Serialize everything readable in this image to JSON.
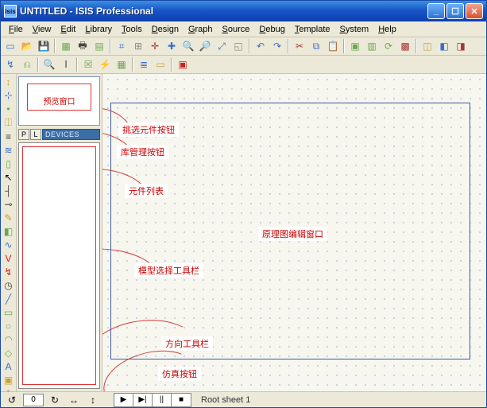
{
  "window": {
    "title_doc": "UNTITLED",
    "title_app": " - ISIS Professional",
    "app_icon_text": "isis"
  },
  "win_buttons": {
    "min": "_",
    "max": "☐",
    "close": "✕"
  },
  "menus": [
    {
      "label": "File",
      "u": "F"
    },
    {
      "label": "View",
      "u": "V"
    },
    {
      "label": "Edit",
      "u": "E"
    },
    {
      "label": "Library",
      "u": "L"
    },
    {
      "label": "Tools",
      "u": "T"
    },
    {
      "label": "Design",
      "u": "D"
    },
    {
      "label": "Graph",
      "u": "G"
    },
    {
      "label": "Source",
      "u": "S"
    },
    {
      "label": "Debug",
      "u": "D"
    },
    {
      "label": "Template",
      "u": "T"
    },
    {
      "label": "System",
      "u": "S"
    },
    {
      "label": "Help",
      "u": "H"
    }
  ],
  "toolbar1": [
    {
      "name": "new-file-icon",
      "glyph": "▭",
      "color": "#3a78c4"
    },
    {
      "name": "open-file-icon",
      "glyph": "📂",
      "color": "#caa23a"
    },
    {
      "name": "save-icon",
      "glyph": "💾",
      "color": "#3a6ecc"
    },
    {
      "name": "sep"
    },
    {
      "name": "grid-area-icon",
      "glyph": "▦",
      "color": "#6aa84f"
    },
    {
      "name": "print-icon",
      "glyph": "🖶",
      "color": "#444"
    },
    {
      "name": "sheet-icon",
      "glyph": "▤",
      "color": "#6aa84f"
    },
    {
      "name": "sep"
    },
    {
      "name": "zoom-area-icon",
      "glyph": "⌗",
      "color": "#3a6ecc"
    },
    {
      "name": "grid-toggle-icon",
      "glyph": "⊞",
      "color": "#888"
    },
    {
      "name": "origin-icon",
      "glyph": "✛",
      "color": "#aa3333"
    },
    {
      "name": "center-icon",
      "glyph": "✚",
      "color": "#3a6ecc"
    },
    {
      "name": "zoom-in-icon",
      "glyph": "🔍",
      "color": "#444"
    },
    {
      "name": "zoom-out-icon",
      "glyph": "🔎",
      "color": "#444"
    },
    {
      "name": "zoom-fit-icon",
      "glyph": "⤢",
      "color": "#3a6ecc"
    },
    {
      "name": "zoom-region-icon",
      "glyph": "◱",
      "color": "#888"
    },
    {
      "name": "sep"
    },
    {
      "name": "undo-icon",
      "glyph": "↶",
      "color": "#3a6ecc"
    },
    {
      "name": "redo-icon",
      "glyph": "↷",
      "color": "#3a6ecc"
    },
    {
      "name": "sep"
    },
    {
      "name": "cut-icon",
      "glyph": "✂",
      "color": "#aa3333"
    },
    {
      "name": "copy-icon",
      "glyph": "⧉",
      "color": "#3a6ecc"
    },
    {
      "name": "paste-icon",
      "glyph": "📋",
      "color": "#caa23a"
    },
    {
      "name": "sep"
    },
    {
      "name": "block-copy-icon",
      "glyph": "▣",
      "color": "#6aa84f"
    },
    {
      "name": "block-move-icon",
      "glyph": "▥",
      "color": "#6aa84f"
    },
    {
      "name": "block-rotate-icon",
      "glyph": "⟳",
      "color": "#6aa84f"
    },
    {
      "name": "block-delete-icon",
      "glyph": "▩",
      "color": "#aa3333"
    },
    {
      "name": "sep"
    },
    {
      "name": "pick-package-icon",
      "glyph": "◫",
      "color": "#caa23a"
    },
    {
      "name": "make-device-icon",
      "glyph": "◧",
      "color": "#3a6ecc"
    },
    {
      "name": "decompose-icon",
      "glyph": "◨",
      "color": "#aa3333"
    }
  ],
  "toolbar2": [
    {
      "name": "wire-tool-icon",
      "glyph": "↯",
      "color": "#3a6ecc"
    },
    {
      "name": "wire-label-icon",
      "glyph": "⎌",
      "color": "#6aa84f"
    },
    {
      "name": "sep"
    },
    {
      "name": "search-icon",
      "glyph": "🔍",
      "color": "#444"
    },
    {
      "name": "find-next-icon",
      "glyph": "Ⅰ",
      "color": "#444"
    },
    {
      "name": "sep"
    },
    {
      "name": "erc-icon",
      "glyph": "☒",
      "color": "#6aa84f"
    },
    {
      "name": "netlist-icon",
      "glyph": "⚡",
      "color": "#aa3333"
    },
    {
      "name": "ares-icon",
      "glyph": "▦",
      "color": "#6aa84f"
    },
    {
      "name": "sep"
    },
    {
      "name": "bom-icon",
      "glyph": "≣",
      "color": "#3a6ecc"
    },
    {
      "name": "report-icon",
      "glyph": "▭",
      "color": "#caa23a"
    },
    {
      "name": "sep"
    },
    {
      "name": "capture-icon",
      "glyph": "▣",
      "color": "#c22"
    }
  ],
  "left_tools": [
    {
      "name": "selection-arrow-icon",
      "glyph": "↕",
      "color": "#caa23a",
      "i": true
    },
    {
      "name": "component-mode-icon",
      "glyph": "⊹",
      "color": "#3a6ecc",
      "i": true
    },
    {
      "name": "junction-icon",
      "glyph": "•",
      "color": "#6aa84f",
      "i": true
    },
    {
      "name": "label-icon",
      "glyph": "⎅",
      "color": "#caa23a",
      "i": true
    },
    {
      "name": "script-icon",
      "glyph": "≡",
      "color": "#444",
      "i": true
    },
    {
      "name": "bus-icon",
      "glyph": "≋",
      "color": "#3a6ecc",
      "i": true
    },
    {
      "name": "subcircuit-icon",
      "glyph": "▯",
      "color": "#6aa84f",
      "i": true
    },
    {
      "name": "pointer-icon",
      "glyph": "↖",
      "color": "#000",
      "i": true
    },
    {
      "name": "terminal-icon",
      "glyph": "┤",
      "color": "#444",
      "i": true
    },
    {
      "name": "pin-icon",
      "glyph": "⊸",
      "color": "#444",
      "i": true
    },
    {
      "name": "graph-icon",
      "glyph": "✎",
      "color": "#caa23a",
      "i": true
    },
    {
      "name": "tape-icon",
      "glyph": "◧",
      "color": "#6aa84f",
      "i": true
    },
    {
      "name": "generator-icon",
      "glyph": "∿",
      "color": "#3a6ecc",
      "i": true
    },
    {
      "name": "probe-v-icon",
      "glyph": "V",
      "color": "#c22",
      "i": true
    },
    {
      "name": "probe-i-icon",
      "glyph": "↯",
      "color": "#c22",
      "i": true
    },
    {
      "name": "instruments-icon",
      "glyph": "◷",
      "color": "#444",
      "i": true
    },
    {
      "name": "line-2d-icon",
      "glyph": "╱",
      "color": "#3a6ecc",
      "i": true
    },
    {
      "name": "box-2d-icon",
      "glyph": "▭",
      "color": "#6aa84f",
      "i": true
    },
    {
      "name": "circle-2d-icon",
      "glyph": "○",
      "color": "#6aa84f",
      "i": true
    },
    {
      "name": "arc-2d-icon",
      "glyph": "◠",
      "color": "#6aa84f",
      "i": true
    },
    {
      "name": "path-2d-icon",
      "glyph": "◇",
      "color": "#6aa84f",
      "i": true
    },
    {
      "name": "text-2d-icon",
      "glyph": "A",
      "color": "#3a6ecc",
      "i": true
    },
    {
      "name": "symbol-icon",
      "glyph": "▣",
      "color": "#caa23a",
      "i": true
    },
    {
      "name": "marker-plus-icon",
      "glyph": "⊕",
      "color": "#c22",
      "i": true
    }
  ],
  "preview": {
    "label": "预览窗口"
  },
  "pl": {
    "p": "P",
    "l": "L",
    "header": "DEVICES"
  },
  "annotations": {
    "pick_component": "挑选元件按钮",
    "lib_manager": "库管理按钮",
    "component_list": "元件列表",
    "schematic_window": "原理图编辑窗口",
    "model_toolbar": "模型选择工具栏",
    "orient_toolbar": "方向工具栏",
    "sim_buttons": "仿真按钮"
  },
  "playback": {
    "play": "▶",
    "step": "▶|",
    "pause": "||",
    "stop": "■"
  },
  "status": {
    "sheet": "Root sheet 1"
  },
  "orient": {
    "ccw": "↺",
    "angle": "0",
    "cw": "↻",
    "fliph": "↔",
    "flipv": "↕"
  },
  "colors": {
    "titlebar_start": "#3a8fe0",
    "titlebar_end": "#0d3fae",
    "panel_bg": "#ece9d8",
    "canvas_bg": "#f7f6ef",
    "grid_dot": "#b8c8d8",
    "sheet_border": "#3c5aa8",
    "annotation_text": "#c00",
    "devices_header_bg": "#3a6ea5",
    "red_outline": "#d33"
  }
}
